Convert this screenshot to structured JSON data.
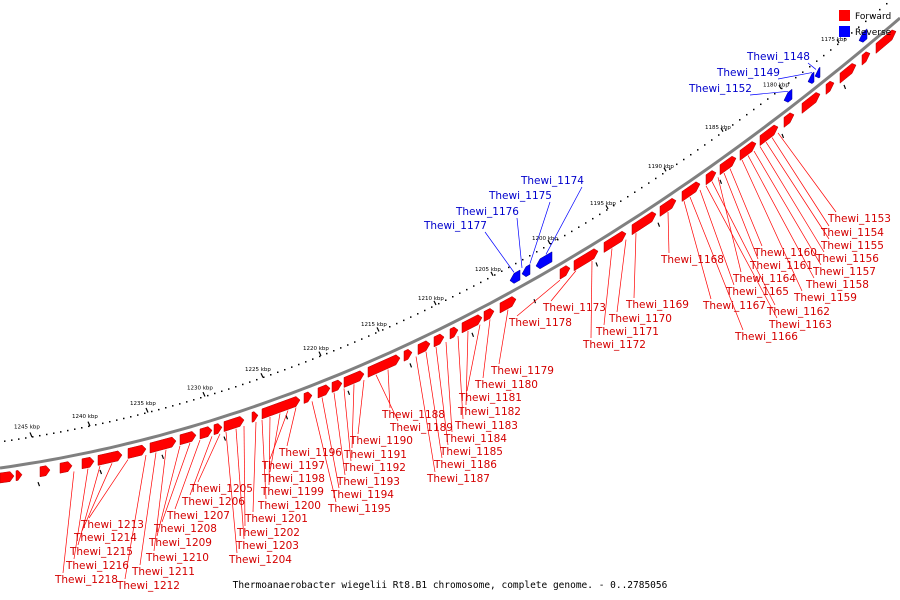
{
  "legend": {
    "items": [
      {
        "label": "Forward",
        "color": "#ff0000"
      },
      {
        "label": "Reverse",
        "color": "#0000ff"
      }
    ]
  },
  "footer": "Thermoanaerobacter wiegelii Rt8.B1 chromosome, complete genome. - 0..2785056",
  "colors": {
    "forward": "#ff0000",
    "reverse": "#0000ff",
    "backbone": "#808080",
    "label_forward": "#d40000",
    "label_reverse": "#0000cc"
  },
  "ticks": [
    "1175 kbp",
    "1180 kbp",
    "1185 kbp",
    "1190 kbp",
    "1195 kbp",
    "1200 kbp",
    "1205 kbp",
    "1210 kbp",
    "1215 kbp",
    "1220 kbp",
    "1225 kbp",
    "1230 kbp",
    "1235 kbp",
    "1240 kbp",
    "1245 kbp"
  ],
  "reverse_labels": [
    "Thewi_1148",
    "Thewi_1149",
    "Thewi_1152",
    "Thewi_1174",
    "Thewi_1175",
    "Thewi_1176",
    "Thewi_1177"
  ],
  "forward_labels": [
    "Thewi_1153",
    "Thewi_1154",
    "Thewi_1155",
    "Thewi_1156",
    "Thewi_1157",
    "Thewi_1158",
    "Thewi_1159",
    "Thewi_1160",
    "Thewi_1161",
    "Thewi_1162",
    "Thewi_1163",
    "Thewi_1164",
    "Thewi_1165",
    "Thewi_1166",
    "Thewi_1167",
    "Thewi_1168",
    "Thewi_1169",
    "Thewi_1170",
    "Thewi_1171",
    "Thewi_1172",
    "Thewi_1173",
    "Thewi_1178",
    "Thewi_1179",
    "Thewi_1180",
    "Thewi_1181",
    "Thewi_1182",
    "Thewi_1183",
    "Thewi_1184",
    "Thewi_1185",
    "Thewi_1186",
    "Thewi_1187",
    "Thewi_1188",
    "Thewi_1189",
    "Thewi_1190",
    "Thewi_1191",
    "Thewi_1192",
    "Thewi_1193",
    "Thewi_1194",
    "Thewi_1195",
    "Thewi_1196",
    "Thewi_1197",
    "Thewi_1198",
    "Thewi_1199",
    "Thewi_1200",
    "Thewi_1201",
    "Thewi_1202",
    "Thewi_1203",
    "Thewi_1204",
    "Thewi_1205",
    "Thewi_1206",
    "Thewi_1207",
    "Thewi_1208",
    "Thewi_1209",
    "Thewi_1210",
    "Thewi_1211",
    "Thewi_1212",
    "Thewi_1213",
    "Thewi_1214",
    "Thewi_1215",
    "Thewi_1216",
    "Thewi_1218"
  ]
}
